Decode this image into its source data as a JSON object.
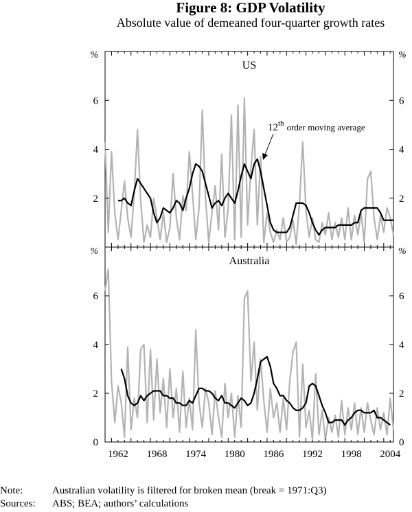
{
  "figure": {
    "title": "Figure 8: GDP Volatility",
    "subtitle": "Absolute value of demeaned four-quarter growth rates"
  },
  "chart_data": [
    {
      "type": "line",
      "title": "US",
      "y_unit": "%",
      "ylim": [
        0,
        8
      ],
      "yticks": [
        2,
        4,
        6
      ],
      "xlim": [
        1960,
        2004.5
      ],
      "xticks": [
        1962,
        1968,
        1974,
        1980,
        1986,
        1992,
        1998,
        2004
      ],
      "grid": false,
      "annotation": {
        "text_base": "12",
        "text_sup": "th",
        "text_rest": "order moving average",
        "points_to": [
          1984,
          3.6
        ]
      },
      "series": [
        {
          "color": "#b3b3b3",
          "x": [
            1960.0,
            1960.5,
            1961.0,
            1961.5,
            1962.0,
            1962.5,
            1963.0,
            1963.5,
            1964.0,
            1964.5,
            1965.0,
            1965.5,
            1966.0,
            1966.5,
            1967.0,
            1967.5,
            1968.0,
            1968.5,
            1969.0,
            1969.5,
            1970.0,
            1970.5,
            1971.0,
            1971.5,
            1972.0,
            1972.5,
            1973.0,
            1973.5,
            1974.0,
            1974.5,
            1975.0,
            1975.5,
            1976.0,
            1976.5,
            1977.0,
            1977.5,
            1978.0,
            1978.5,
            1979.0,
            1979.5,
            1980.0,
            1980.5,
            1981.0,
            1981.5,
            1982.0,
            1982.5,
            1983.0,
            1983.5,
            1984.0,
            1984.5,
            1985.0,
            1985.5,
            1986.0,
            1986.5,
            1987.0,
            1987.5,
            1988.0,
            1988.5,
            1989.0,
            1989.5,
            1990.0,
            1990.5,
            1991.0,
            1991.5,
            1992.0,
            1992.5,
            1993.0,
            1993.5,
            1994.0,
            1994.5,
            1995.0,
            1995.5,
            1996.0,
            1996.5,
            1997.0,
            1997.5,
            1998.0,
            1998.5,
            1999.0,
            1999.5,
            2000.0,
            2000.5,
            2001.0,
            2001.5,
            2002.0,
            2002.5,
            2003.0,
            2003.5,
            2004.0,
            2004.5
          ],
          "y": [
            4.3,
            0.6,
            3.9,
            1.4,
            0.3,
            1.5,
            2.7,
            1.2,
            0.4,
            2.2,
            4.8,
            1.9,
            0.2,
            0.9,
            0.4,
            2.0,
            1.2,
            0.3,
            1.4,
            0.2,
            0.8,
            3.0,
            1.2,
            0.3,
            2.1,
            1.5,
            3.9,
            2.2,
            0.3,
            1.6,
            5.6,
            2.0,
            0.2,
            1.4,
            2.5,
            0.7,
            3.8,
            0.4,
            1.6,
            5.4,
            0.3,
            5.8,
            0.4,
            6.1,
            0.9,
            3.2,
            4.8,
            0.9,
            3.7,
            0.2,
            1.4,
            0.6,
            0.2,
            0.7,
            0.3,
            1.2,
            0.2,
            0.4,
            1.1,
            0.1,
            1.8,
            4.3,
            1.5,
            0.4,
            1.2,
            0.3,
            0.2,
            1.0,
            0.5,
            1.4,
            0.3,
            1.0,
            0.4,
            1.2,
            0.3,
            1.6,
            0.3,
            1.3,
            0.5,
            1.4,
            0.2,
            2.8,
            3.1,
            1.2,
            0.3,
            1.3,
            0.6,
            1.6,
            1.2,
            0.5
          ]
        },
        {
          "color": "#000000",
          "name": "12th order moving average",
          "x": [
            1962.0,
            1962.5,
            1963.0,
            1963.5,
            1964.0,
            1964.5,
            1965.0,
            1965.5,
            1966.0,
            1966.5,
            1967.0,
            1967.5,
            1968.0,
            1968.5,
            1969.0,
            1969.5,
            1970.0,
            1970.5,
            1971.0,
            1971.5,
            1972.0,
            1972.5,
            1973.0,
            1973.5,
            1974.0,
            1974.5,
            1975.0,
            1975.5,
            1976.0,
            1976.5,
            1977.0,
            1977.5,
            1978.0,
            1978.5,
            1979.0,
            1979.5,
            1980.0,
            1980.5,
            1981.0,
            1981.5,
            1982.0,
            1982.5,
            1983.0,
            1983.5,
            1984.0,
            1984.5,
            1985.0,
            1985.5,
            1986.0,
            1986.5,
            1987.0,
            1987.5,
            1988.0,
            1988.5,
            1989.0,
            1989.5,
            1990.0,
            1990.5,
            1991.0,
            1991.5,
            1992.0,
            1992.5,
            1993.0,
            1993.5,
            1994.0,
            1994.5,
            1995.0,
            1995.5,
            1996.0,
            1996.5,
            1997.0,
            1997.5,
            1998.0,
            1998.5,
            1999.0,
            1999.5,
            2000.0,
            2000.5,
            2001.0,
            2001.5,
            2002.0,
            2002.5,
            2003.0,
            2003.5,
            2004.0,
            2004.5
          ],
          "y": [
            1.9,
            1.9,
            2.0,
            1.8,
            1.7,
            2.3,
            2.8,
            2.6,
            2.4,
            2.2,
            2.0,
            1.4,
            1.0,
            1.2,
            1.6,
            1.5,
            1.4,
            1.6,
            1.9,
            1.8,
            1.5,
            2.0,
            2.4,
            3.0,
            3.4,
            3.3,
            3.1,
            2.6,
            2.1,
            1.6,
            1.8,
            1.9,
            1.7,
            2.0,
            2.2,
            2.0,
            1.8,
            2.3,
            2.9,
            3.4,
            3.1,
            2.8,
            3.4,
            3.6,
            3.1,
            2.4,
            1.7,
            1.0,
            0.7,
            0.6,
            0.6,
            0.6,
            0.6,
            0.8,
            1.3,
            1.8,
            1.8,
            1.8,
            1.7,
            1.4,
            1.0,
            0.7,
            0.5,
            0.7,
            0.8,
            0.8,
            0.8,
            0.8,
            0.9,
            0.9,
            0.9,
            0.9,
            0.9,
            1.0,
            1.0,
            1.5,
            1.6,
            1.6,
            1.6,
            1.6,
            1.6,
            1.4,
            1.1,
            1.1,
            1.1,
            1.1
          ]
        }
      ]
    },
    {
      "type": "line",
      "title": "Australia",
      "y_unit": "%",
      "ylim": [
        0,
        8
      ],
      "yticks": [
        0,
        2,
        4,
        6
      ],
      "xlim": [
        1960,
        2004.5
      ],
      "xticks": [
        1962,
        1968,
        1974,
        1980,
        1986,
        1992,
        1998,
        2004
      ],
      "grid": false,
      "series": [
        {
          "color": "#b3b3b3",
          "x": [
            1960.0,
            1960.5,
            1961.0,
            1961.5,
            1962.0,
            1962.5,
            1963.0,
            1963.5,
            1964.0,
            1964.5,
            1965.0,
            1965.5,
            1966.0,
            1966.5,
            1967.0,
            1967.5,
            1968.0,
            1968.5,
            1969.0,
            1969.5,
            1970.0,
            1970.5,
            1971.0,
            1971.5,
            1972.0,
            1972.5,
            1973.0,
            1973.5,
            1974.0,
            1974.5,
            1975.0,
            1975.5,
            1976.0,
            1976.5,
            1977.0,
            1977.5,
            1978.0,
            1978.5,
            1979.0,
            1979.5,
            1980.0,
            1980.5,
            1981.0,
            1981.5,
            1982.0,
            1982.5,
            1983.0,
            1983.5,
            1984.0,
            1984.5,
            1985.0,
            1985.5,
            1986.0,
            1986.5,
            1987.0,
            1987.5,
            1988.0,
            1988.5,
            1989.0,
            1989.5,
            1990.0,
            1990.5,
            1991.0,
            1991.5,
            1992.0,
            1992.5,
            1993.0,
            1993.5,
            1994.0,
            1994.5,
            1995.0,
            1995.5,
            1996.0,
            1996.5,
            1997.0,
            1997.5,
            1998.0,
            1998.5,
            1999.0,
            1999.5,
            2000.0,
            2000.5,
            2001.0,
            2001.5,
            2002.0,
            2002.5,
            2003.0,
            2003.5,
            2004.0,
            2004.5
          ],
          "y": [
            6.2,
            7.1,
            2.5,
            0.8,
            2.3,
            1.6,
            0.2,
            3.9,
            0.5,
            1.8,
            1.0,
            3.8,
            4.0,
            0.8,
            3.8,
            0.9,
            3.4,
            1.2,
            2.6,
            0.6,
            3.0,
            1.0,
            2.2,
            0.4,
            2.9,
            0.6,
            1.8,
            0.5,
            4.6,
            1.6,
            0.6,
            2.2,
            1.6,
            0.3,
            2.1,
            1.0,
            0.2,
            2.4,
            1.0,
            2.0,
            0.2,
            1.9,
            0.6,
            5.9,
            6.2,
            2.5,
            4.1,
            1.3,
            3.4,
            1.7,
            0.4,
            2.2,
            1.0,
            1.6,
            0.4,
            1.8,
            0.5,
            2.5,
            3.7,
            4.1,
            0.2,
            3.2,
            0.6,
            1.3,
            0.1,
            2.8,
            0.3,
            1.3,
            0.1,
            1.0,
            0.4,
            1.1,
            0.2,
            1.7,
            0.3,
            1.4,
            0.5,
            1.6,
            0.3,
            1.4,
            0.4,
            1.6,
            0.9,
            0.3,
            1.4,
            0.5,
            1.2,
            0.3,
            1.8,
            0.5
          ]
        },
        {
          "color": "#000000",
          "x": [
            1962.5,
            1963.0,
            1963.5,
            1964.0,
            1964.5,
            1965.0,
            1965.5,
            1966.0,
            1966.5,
            1967.0,
            1967.5,
            1968.0,
            1968.5,
            1969.0,
            1969.5,
            1970.0,
            1970.5,
            1971.0,
            1971.5,
            1972.0,
            1972.5,
            1973.0,
            1973.5,
            1974.0,
            1974.5,
            1975.0,
            1975.5,
            1976.0,
            1976.5,
            1977.0,
            1977.5,
            1978.0,
            1978.5,
            1979.0,
            1979.5,
            1980.0,
            1980.5,
            1981.0,
            1981.5,
            1982.0,
            1982.5,
            1983.0,
            1983.5,
            1984.0,
            1984.5,
            1985.0,
            1985.5,
            1986.0,
            1986.5,
            1987.0,
            1987.5,
            1988.0,
            1988.5,
            1989.0,
            1989.5,
            1990.0,
            1990.5,
            1991.0,
            1991.5,
            1992.0,
            1992.5,
            1993.0,
            1993.5,
            1994.0,
            1994.5,
            1995.0,
            1995.5,
            1996.0,
            1996.5,
            1997.0,
            1997.5,
            1998.0,
            1998.5,
            1999.0,
            1999.5,
            2000.0,
            2000.5,
            2001.0,
            2001.5,
            2002.0,
            2002.5,
            2003.0,
            2003.5,
            2004.0
          ],
          "y": [
            3.0,
            2.6,
            1.9,
            1.6,
            1.5,
            1.6,
            1.9,
            1.7,
            1.9,
            2.0,
            2.1,
            2.1,
            2.1,
            1.9,
            1.9,
            1.8,
            1.8,
            1.6,
            1.6,
            1.5,
            1.5,
            1.7,
            1.6,
            1.9,
            2.2,
            2.2,
            2.1,
            2.1,
            2.0,
            1.8,
            1.7,
            1.9,
            1.6,
            1.6,
            1.5,
            1.4,
            1.6,
            1.8,
            1.7,
            1.5,
            1.6,
            2.0,
            2.6,
            3.3,
            3.4,
            3.5,
            3.1,
            2.4,
            2.2,
            1.9,
            1.9,
            1.7,
            1.6,
            1.4,
            1.3,
            1.3,
            1.4,
            1.6,
            2.3,
            2.4,
            2.3,
            1.9,
            1.5,
            1.2,
            0.8,
            0.8,
            0.9,
            0.9,
            0.9,
            0.7,
            0.9,
            1.0,
            1.2,
            1.3,
            1.3,
            1.2,
            1.2,
            1.2,
            1.3,
            1.0,
            1.0,
            0.9,
            0.8,
            0.7
          ]
        }
      ]
    }
  ],
  "notes": {
    "note_label": "Note:",
    "note_text": "Australian volatility is filtered for broken mean (break = 1971:Q3)",
    "sources_label": "Sources:",
    "sources_text": "ABS; BEA; authors’ calculations"
  }
}
